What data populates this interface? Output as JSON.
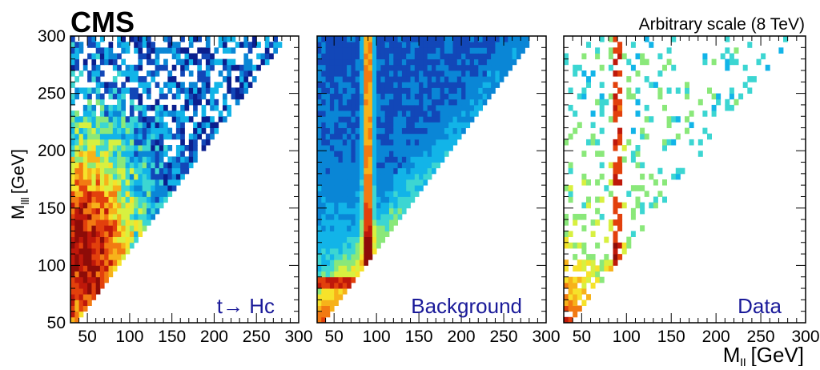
{
  "header": {
    "experiment": "CMS",
    "scale_note": "Arbitrary scale (8 TeV)"
  },
  "colors": {
    "label_blue": "#1a1a99",
    "frame": "#000000",
    "palette": [
      "#0a1f8f",
      "#1247b8",
      "#0a86d6",
      "#12b4e8",
      "#3cd6d2",
      "#8ae87a",
      "#d8f040",
      "#f6e22a",
      "#f7b21a",
      "#f27a12",
      "#e2400c",
      "#bf180a",
      "#8e0c08"
    ]
  },
  "chart_data": {
    "type": "heatmap",
    "xlabel": "M",
    "xlabel_sub": "ll",
    "xlabel_unit": "[GeV]",
    "ylabel": "M",
    "ylabel_sub": "lll",
    "ylabel_unit": "[GeV]",
    "xlim": [
      30,
      300
    ],
    "ylim": [
      50,
      300
    ],
    "x_ticks": [
      50,
      100,
      150,
      200,
      250,
      300
    ],
    "y_ticks": [
      50,
      100,
      150,
      200,
      250,
      300
    ],
    "z_scale": "arbitrary",
    "panels": [
      {
        "label": "t→ Hc",
        "sample": "signal"
      },
      {
        "label": "Background",
        "sample": "background"
      },
      {
        "label": "Data",
        "sample": "data"
      }
    ]
  }
}
